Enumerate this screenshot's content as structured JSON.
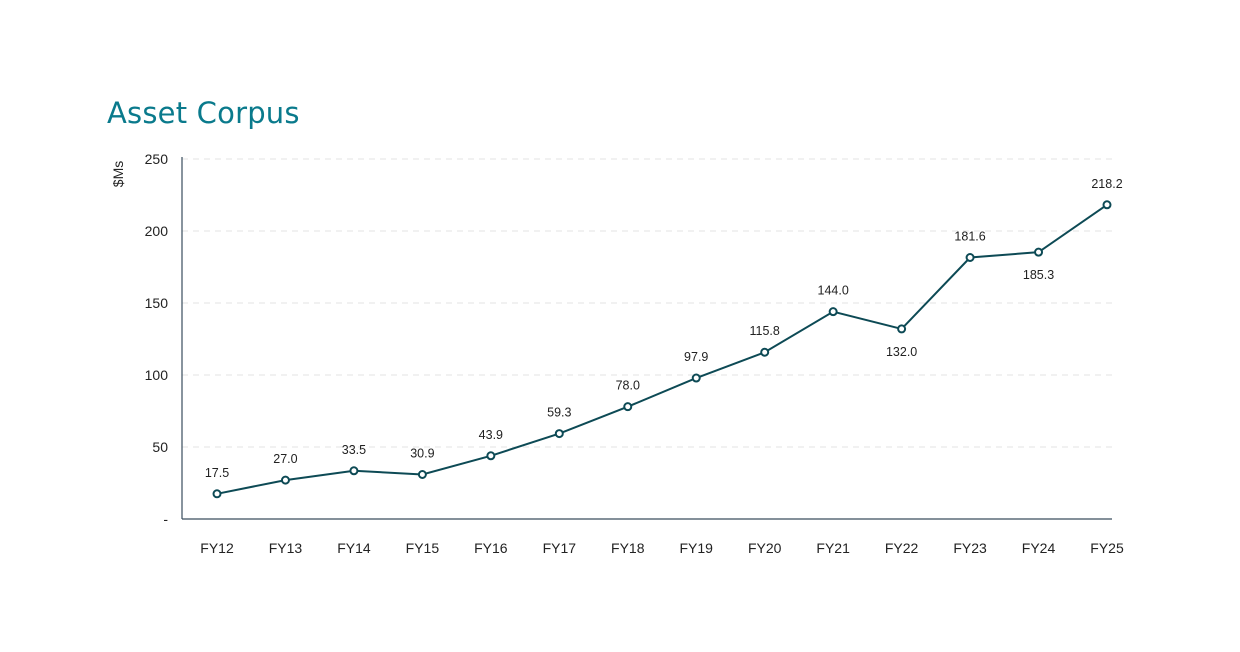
{
  "chart_data": {
    "type": "line",
    "title": "Asset Corpus",
    "xlabel": "",
    "ylabel": "$Ms",
    "ylim": [
      0,
      250
    ],
    "yticks": [
      0,
      50,
      100,
      150,
      200,
      250
    ],
    "ytick_labels": [
      "-",
      "50",
      "100",
      "150",
      "200",
      "250"
    ],
    "grid": true,
    "categories": [
      "FY12",
      "FY13",
      "FY14",
      "FY15",
      "FY16",
      "FY17",
      "FY18",
      "FY19",
      "FY20",
      "FY21",
      "FY22",
      "FY23",
      "FY24",
      "FY25"
    ],
    "values": [
      17.5,
      27.0,
      33.5,
      30.9,
      43.9,
      59.3,
      78.0,
      97.9,
      115.8,
      144.0,
      132.0,
      181.6,
      185.3,
      218.2
    ],
    "data_labels": [
      "17.5",
      "27.0",
      "33.5",
      "30.9",
      "43.9",
      "59.3",
      "78.0",
      "97.9",
      "115.8",
      "144.0",
      "132.0",
      "181.6",
      "185.3",
      "218.2"
    ],
    "label_below": [
      false,
      false,
      false,
      false,
      false,
      false,
      false,
      false,
      false,
      false,
      true,
      false,
      true,
      false
    ],
    "line_color": "#0d4a55"
  }
}
